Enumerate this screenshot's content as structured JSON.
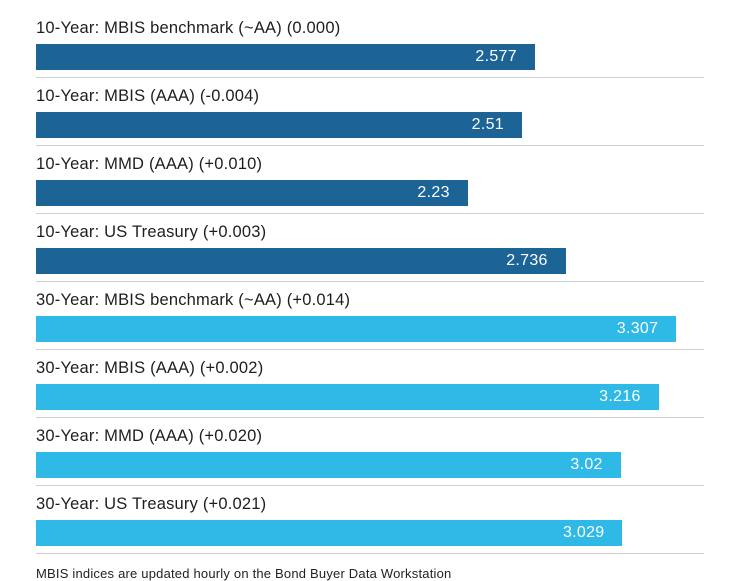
{
  "chart_data": {
    "type": "bar",
    "orientation": "horizontal",
    "title": "",
    "xlabel": "",
    "ylabel": "",
    "xlim": [
      0,
      3.45
    ],
    "grid": false,
    "legend_position": "none",
    "colors": {
      "10-year": "#1c6496",
      "30-year": "#2eb9e6"
    },
    "categories": [
      "10-Year: MBIS benchmark (~AA) (0.000)",
      "10-Year: MBIS (AAA) (-0.004)",
      "10-Year: MMD (AAA) (+0.010)",
      "10-Year: US Treasury (+0.003)",
      "30-Year: MBIS benchmark (~AA) (+0.014)",
      "30-Year: MBIS (AAA) (+0.002)",
      "30-Year: MMD (AAA) (+0.020)",
      "30-Year: US Treasury (+0.021)"
    ],
    "values": [
      2.577,
      2.51,
      2.23,
      2.736,
      3.307,
      3.216,
      3.02,
      3.029
    ],
    "rows": [
      {
        "label": "10-Year: MBIS benchmark (~AA) (0.000)",
        "value": 2.577,
        "display": "2.577",
        "group": "10-year"
      },
      {
        "label": "10-Year: MBIS (AAA) (-0.004)",
        "value": 2.51,
        "display": "2.51",
        "group": "10-year"
      },
      {
        "label": "10-Year: MMD (AAA) (+0.010)",
        "value": 2.23,
        "display": "2.23",
        "group": "10-year"
      },
      {
        "label": "10-Year: US Treasury (+0.003)",
        "value": 2.736,
        "display": "2.736",
        "group": "10-year"
      },
      {
        "label": "30-Year: MBIS benchmark (~AA) (+0.014)",
        "value": 3.307,
        "display": "3.307",
        "group": "30-year"
      },
      {
        "label": "30-Year: MBIS (AAA) (+0.002)",
        "value": 3.216,
        "display": "3.216",
        "group": "30-year"
      },
      {
        "label": "30-Year: MMD (AAA) (+0.020)",
        "value": 3.02,
        "display": "3.02",
        "group": "30-year"
      },
      {
        "label": "30-Year: US Treasury (+0.021)",
        "value": 3.029,
        "display": "3.029",
        "group": "30-year"
      }
    ],
    "footnote": "MBIS indices are updated hourly on the Bond Buyer Data Workstation"
  }
}
